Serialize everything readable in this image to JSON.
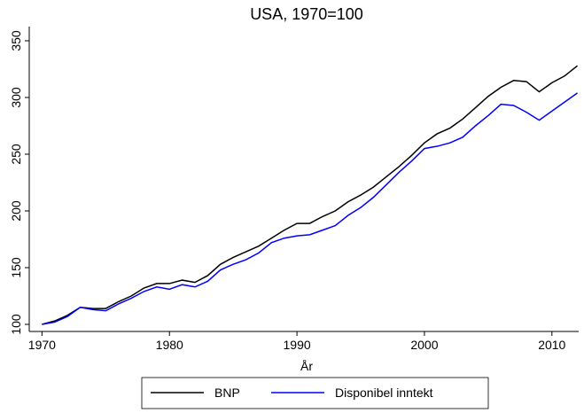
{
  "chart_data": {
    "type": "line",
    "title": "USA, 1970=100",
    "x_label": "År",
    "x": [
      1970,
      1971,
      1972,
      1973,
      1974,
      1975,
      1976,
      1977,
      1978,
      1979,
      1980,
      1981,
      1982,
      1983,
      1984,
      1985,
      1986,
      1987,
      1988,
      1989,
      1990,
      1991,
      1992,
      1993,
      1994,
      1995,
      1996,
      1997,
      1998,
      1999,
      2000,
      2001,
      2002,
      2003,
      2004,
      2005,
      2006,
      2007,
      2008,
      2009,
      2010,
      2011,
      2012
    ],
    "series": [
      {
        "name": "BNP",
        "color": "#000000",
        "values": [
          100,
          103,
          108,
          115,
          114,
          114,
          120,
          125,
          132,
          136,
          136,
          139,
          137,
          143,
          153,
          159,
          164,
          169,
          176,
          183,
          189,
          189,
          195,
          200,
          208,
          214,
          221,
          230,
          239,
          249,
          260,
          268,
          273,
          281,
          291,
          301,
          309,
          315,
          314,
          305,
          313,
          319,
          328
        ]
      },
      {
        "name": "Disponibel inntekt",
        "color": "#0000ff",
        "values": [
          100,
          102,
          107,
          115,
          113,
          112,
          118,
          123,
          129,
          133,
          131,
          135,
          133,
          138,
          148,
          153,
          157,
          163,
          172,
          176,
          178,
          179,
          183,
          187,
          196,
          203,
          212,
          223,
          234,
          244,
          255,
          257,
          260,
          265,
          275,
          284,
          294,
          293,
          287,
          280,
          288,
          296,
          304
        ]
      }
    ],
    "xlim": [
      1969,
      2012.1
    ],
    "xticks": [
      1970,
      1980,
      1990,
      2000,
      2010
    ],
    "ylim": [
      93.75,
      362.5
    ],
    "yticks": [
      100,
      150,
      200,
      250,
      300,
      350
    ],
    "legend": "bottom"
  }
}
